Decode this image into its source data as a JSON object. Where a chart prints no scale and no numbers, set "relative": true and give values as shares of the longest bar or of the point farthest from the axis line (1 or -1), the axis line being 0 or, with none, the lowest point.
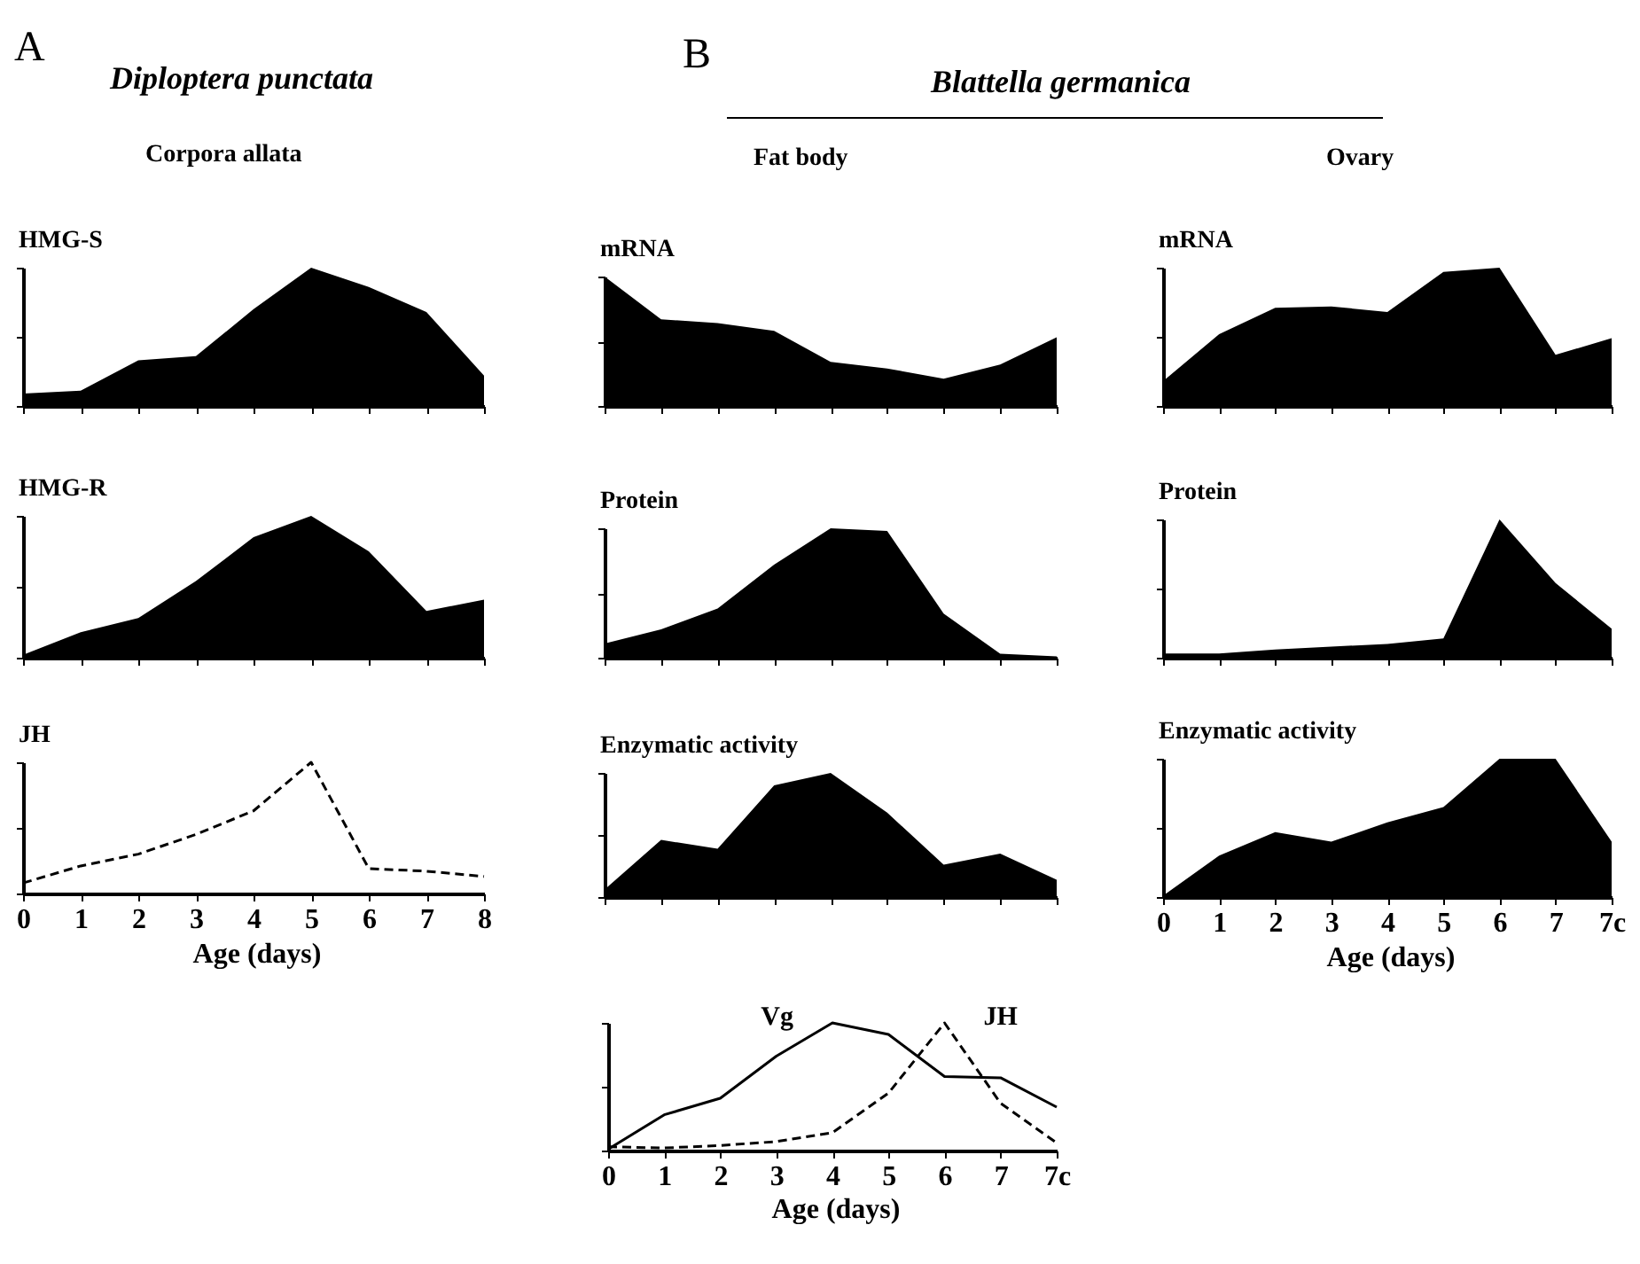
{
  "chart_data": [
    {
      "type": "area",
      "title": "HMG-S",
      "annotations": [
        "A",
        "Diploptera punctata",
        "Corpora allata"
      ],
      "categories": [
        null,
        null,
        null,
        null,
        null,
        null,
        null,
        null,
        null
      ],
      "relative": true,
      "tick_labels": false,
      "color": "#000000",
      "values": [
        0.09,
        0.11,
        0.33,
        0.36,
        0.7,
        1,
        0.86,
        0.68,
        0.22
      ]
    },
    {
      "type": "area",
      "title": "HMG-R",
      "categories": [
        null,
        null,
        null,
        null,
        null,
        null,
        null,
        null,
        null
      ],
      "relative": true,
      "tick_labels": false,
      "color": "#000000",
      "values": [
        0.02,
        0.18,
        0.28,
        0.54,
        0.85,
        1,
        0.75,
        0.33,
        0.41
      ]
    },
    {
      "type": "line",
      "title": "JH",
      "xlabel": "Age (days)",
      "categories": [
        "0",
        "1",
        "2",
        "3",
        "4",
        "5",
        "6",
        "7",
        "8"
      ],
      "relative": true,
      "tick_labels": "x",
      "line_style": "dashed",
      "color": "#000000",
      "values": [
        0.08,
        0.21,
        0.3,
        0.45,
        0.63,
        1,
        0.19,
        0.17,
        0.13
      ]
    },
    {
      "type": "area",
      "title": "mRNA",
      "annotations": [
        "B",
        "Blattella germanica",
        "Fat body"
      ],
      "categories": [
        null,
        null,
        null,
        null,
        null,
        null,
        null,
        null,
        null
      ],
      "relative": true,
      "tick_labels": false,
      "color": "#000000",
      "values": [
        1,
        0.67,
        0.64,
        0.58,
        0.34,
        0.29,
        0.21,
        0.32,
        0.53
      ]
    },
    {
      "type": "area",
      "title": "Protein",
      "categories": [
        null,
        null,
        null,
        null,
        null,
        null,
        null,
        null,
        null
      ],
      "relative": true,
      "tick_labels": false,
      "color": "#000000",
      "values": [
        0.11,
        0.22,
        0.38,
        0.72,
        1,
        0.98,
        0.34,
        0.03,
        0.01
      ]
    },
    {
      "type": "area",
      "title": "Enzymatic activity",
      "categories": [
        null,
        null,
        null,
        null,
        null,
        null,
        null,
        null,
        null
      ],
      "relative": true,
      "tick_labels": false,
      "color": "#000000",
      "values": [
        0.06,
        0.46,
        0.39,
        0.9,
        1,
        0.68,
        0.26,
        0.35,
        0.14
      ]
    },
    {
      "type": "line",
      "xlabel": "Age (days)",
      "categories": [
        "0",
        "1",
        "2",
        "3",
        "4",
        "5",
        "6",
        "7",
        "7c"
      ],
      "relative": true,
      "tick_labels": "x",
      "series": [
        {
          "name": "Vg",
          "color": "#000000",
          "line_style": "solid",
          "values": [
            0.01,
            0.28,
            0.41,
            0.74,
            1,
            0.91,
            0.58,
            0.57,
            0.34
          ]
        },
        {
          "name": "JH",
          "color": "#000000",
          "line_style": "dashed",
          "values": [
            0.03,
            0.02,
            0.04,
            0.07,
            0.14,
            0.45,
            1,
            0.37,
            0.06
          ]
        }
      ]
    },
    {
      "type": "area",
      "title": "mRNA",
      "annotations": [
        "Ovary"
      ],
      "categories": [
        null,
        null,
        null,
        null,
        null,
        null,
        null,
        null,
        null
      ],
      "relative": true,
      "tick_labels": false,
      "color": "#000000",
      "values": [
        0.18,
        0.52,
        0.71,
        0.72,
        0.68,
        0.97,
        1,
        0.37,
        0.49
      ]
    },
    {
      "type": "area",
      "title": "Protein",
      "categories": [
        null,
        null,
        null,
        null,
        null,
        null,
        null,
        null,
        null
      ],
      "relative": true,
      "tick_labels": false,
      "color": "#000000",
      "values": [
        0.03,
        0.03,
        0.06,
        0.08,
        0.1,
        0.14,
        1,
        0.54,
        0.21
      ]
    },
    {
      "type": "area",
      "title": "Enzymatic activity",
      "xlabel": "Age (days)",
      "categories": [
        "0",
        "1",
        "2",
        "3",
        "4",
        "5",
        "6",
        "7",
        "7c"
      ],
      "relative": true,
      "tick_labels": "x",
      "color": "#000000",
      "values": [
        0.01,
        0.3,
        0.47,
        0.4,
        0.54,
        0.65,
        1,
        1,
        0.4
      ]
    }
  ]
}
